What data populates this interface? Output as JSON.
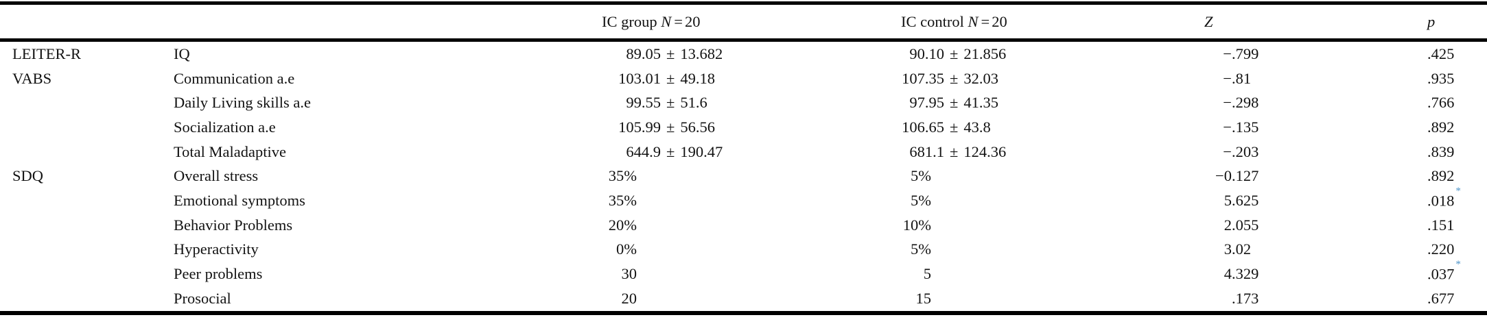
{
  "table": {
    "header": {
      "scale_col": "",
      "measure_col": "",
      "ic_group": {
        "label": "IC group",
        "n": "N",
        "eq": "=",
        "n_value": "20"
      },
      "ic_control": {
        "label": "IC control",
        "n": "N",
        "eq": "=",
        "n_value": "20"
      },
      "z": "Z",
      "p": "p"
    },
    "sig_marker": "*",
    "rows": [
      {
        "group": "LEITER-R",
        "measure": "IQ",
        "ic_group": "89.05 ± 13.682",
        "ic_control": "90.10 ± 21.856",
        "z": "−.799",
        "p": ".425",
        "sig": false
      },
      {
        "group": "VABS",
        "measure": "Communication a.e",
        "ic_group": "103.01 ± 49.18",
        "ic_control": "107.35 ± 32.03",
        "z": "−.81",
        "p": ".935",
        "sig": false
      },
      {
        "group": "",
        "measure": "Daily Living skills a.e",
        "ic_group": "99.55 ± 51.6",
        "ic_control": "97.95 ± 41.35",
        "z": "−.298",
        "p": ".766",
        "sig": false
      },
      {
        "group": "",
        "measure": "Socialization a.e",
        "ic_group": "105.99 ± 56.56",
        "ic_control": "106.65 ± 43.8",
        "z": "−.135",
        "p": ".892",
        "sig": false
      },
      {
        "group": "",
        "measure": "Total Maladaptive",
        "ic_group": "644.9 ± 190.47",
        "ic_control": "681.1 ± 124.36",
        "z": "−.203",
        "p": ".839",
        "sig": false
      },
      {
        "group": "SDQ",
        "measure": "Overall stress",
        "ic_group": "35%",
        "ic_control": "5%",
        "z": "−0.127",
        "p": ".892",
        "sig": false
      },
      {
        "group": "",
        "measure": "Emotional symptoms",
        "ic_group": "35%",
        "ic_control": "5%",
        "z": "5.625",
        "p": ".018",
        "sig": true
      },
      {
        "group": "",
        "measure": "Behavior Problems",
        "ic_group": "20%",
        "ic_control": "10%",
        "z": "2.055",
        "p": ".151",
        "sig": false
      },
      {
        "group": "",
        "measure": "Hyperactivity",
        "ic_group": "0%",
        "ic_control": "5%",
        "z": "3.02",
        "p": ".220",
        "sig": false
      },
      {
        "group": "",
        "measure": "Peer problems",
        "ic_group": "30",
        "ic_control": "5",
        "z": "4.329",
        "p": ".037",
        "sig": true
      },
      {
        "group": "",
        "measure": "Prosocial",
        "ic_group": "20",
        "ic_control": "15",
        "z": ".173",
        "p": ".677",
        "sig": false
      }
    ],
    "colors": {
      "text": "#121212",
      "rule": "#000000",
      "sig_asterisk": "#4d94c9"
    }
  }
}
